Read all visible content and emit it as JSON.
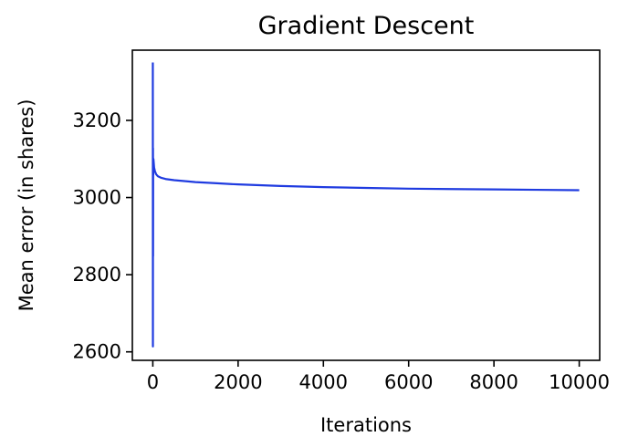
{
  "chart_data": {
    "type": "line",
    "title": "Gradient Descent",
    "xlabel": "Iterations",
    "ylabel": "Mean error (in shares)",
    "xlim": [
      -480,
      10480
    ],
    "ylim": [
      2578,
      3382
    ],
    "x_ticks": [
      0,
      2000,
      4000,
      6000,
      8000,
      10000
    ],
    "y_ticks": [
      2600,
      2800,
      3000,
      3200
    ],
    "grid": false,
    "legend": "none",
    "series": [
      {
        "color": "#1f3be0",
        "x": [
          0,
          2,
          4,
          6,
          8,
          10,
          14,
          20,
          30,
          50,
          80,
          120,
          200,
          300,
          500,
          800,
          1000,
          1500,
          2000,
          3000,
          4000,
          5000,
          6000,
          7000,
          8000,
          9000,
          10000
        ],
        "y": [
          3350,
          2614,
          3128,
          2848,
          3082,
          3058,
          3100,
          3092,
          3078,
          3068,
          3060,
          3055,
          3051,
          3048,
          3045,
          3042,
          3040,
          3037,
          3034,
          3030,
          3027,
          3025,
          3023,
          3022,
          3021,
          3020,
          3019
        ]
      }
    ]
  }
}
